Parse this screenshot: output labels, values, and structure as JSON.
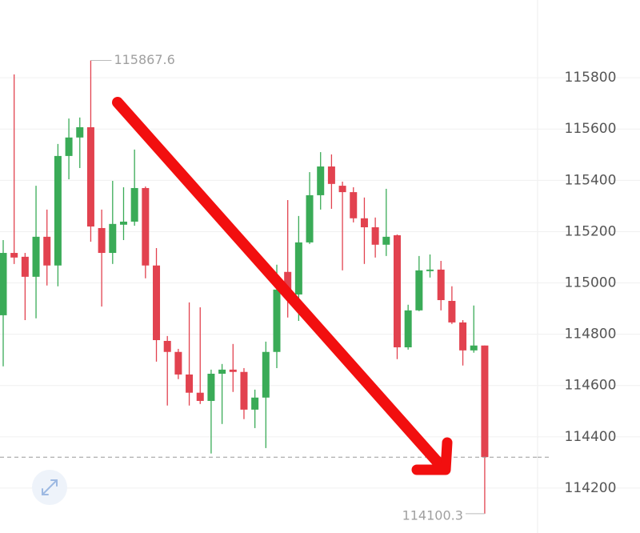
{
  "chart_data": {
    "type": "candlestick",
    "open": [
      114874,
      115117,
      115102,
      115024,
      115180,
      115068,
      115495,
      115567,
      115607,
      115214,
      115117,
      115227,
      115239,
      115370,
      115068,
      114774,
      114731,
      114643,
      114572,
      114540,
      114646,
      114662,
      114653,
      114506,
      114553,
      114731,
      115043,
      114955,
      115158,
      115342,
      115454,
      115379,
      115354,
      115252,
      115217,
      115149,
      115186,
      114749,
      114893,
      115046,
      115052,
      114930,
      114846,
      114737,
      114756
    ],
    "high": [
      115167,
      115813,
      115117,
      115379,
      115286,
      115542,
      115641,
      115645,
      115867.6,
      115286,
      115398,
      115373,
      115520,
      115376,
      115136,
      114793,
      114743,
      114924,
      114905,
      114662,
      114684,
      114762,
      114668,
      114584,
      114771,
      115071,
      115323,
      115261,
      115432,
      115510,
      115501,
      115395,
      115373,
      115333,
      115255,
      115367,
      115189,
      114915,
      115105,
      115111,
      115086,
      114987,
      114855,
      114912,
      114756
    ],
    "low": [
      114675,
      115074,
      114855,
      114862,
      114990,
      114987,
      115404,
      115448,
      115161,
      114908,
      115074,
      115167,
      115223,
      115018,
      114693,
      114522,
      114625,
      114522,
      114528,
      114335,
      114450,
      114575,
      114469,
      114434,
      114356,
      114668,
      114865,
      114852,
      115152,
      115286,
      115289,
      115049,
      115236,
      115074,
      115099,
      115105,
      114703,
      114740,
      114890,
      115021,
      114893,
      114840,
      114678,
      114728,
      114100.3
    ],
    "close": [
      115117,
      115099,
      115024,
      115180,
      115068,
      115495,
      115567,
      115607,
      115220,
      115117,
      115230,
      115239,
      115370,
      115068,
      114777,
      114731,
      114643,
      114572,
      114540,
      114646,
      114662,
      114653,
      114506,
      114553,
      114731,
      114974,
      114955,
      115158,
      115342,
      115454,
      115386,
      115354,
      115252,
      115217,
      115149,
      115180,
      114749,
      114893,
      115049,
      115052,
      114933,
      114846,
      114737,
      114756,
      114320.8
    ],
    "up_color": "#3aab57",
    "down_color": "#e2424f",
    "ylim": [
      114050,
      116100
    ],
    "yticks": [
      114200,
      114400,
      114600,
      114800,
      115000,
      115200,
      115400,
      115600,
      115800
    ],
    "grid": true
  }
}
